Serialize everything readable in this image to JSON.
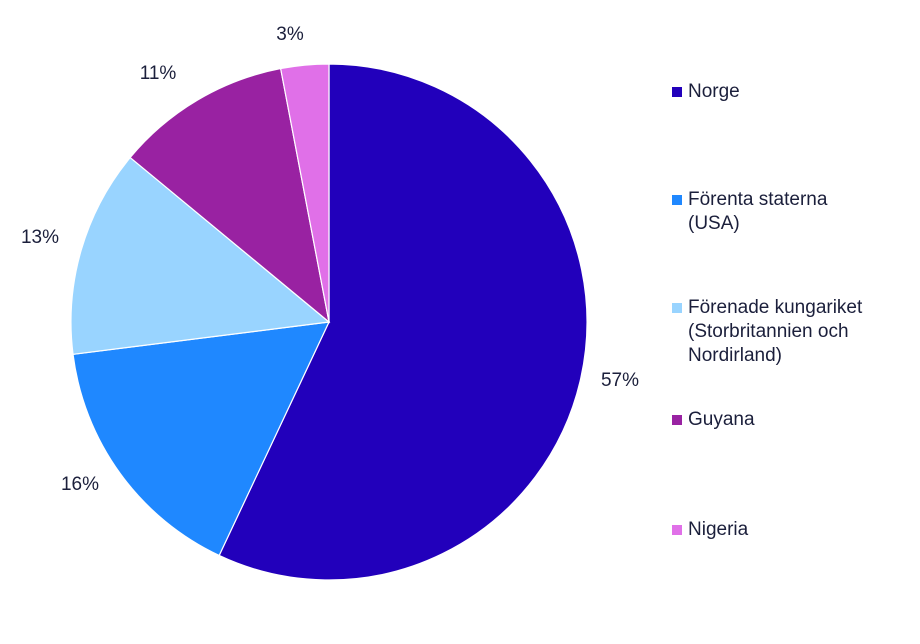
{
  "chart_data": {
    "type": "pie",
    "categories": [
      "Norge",
      "Förenta staterna (USA)",
      "Förenade kungariket (Storbritannien och Nordirland)",
      "Guyana",
      "Nigeria"
    ],
    "values": [
      57,
      16,
      13,
      11,
      3
    ],
    "labels": [
      "57%",
      "16%",
      "13%",
      "11%",
      "3%"
    ],
    "colors": [
      "#2200bb",
      "#1f88ff",
      "#99d4ff",
      "#9922a2",
      "#e070e8"
    ],
    "legend_position": "right"
  }
}
